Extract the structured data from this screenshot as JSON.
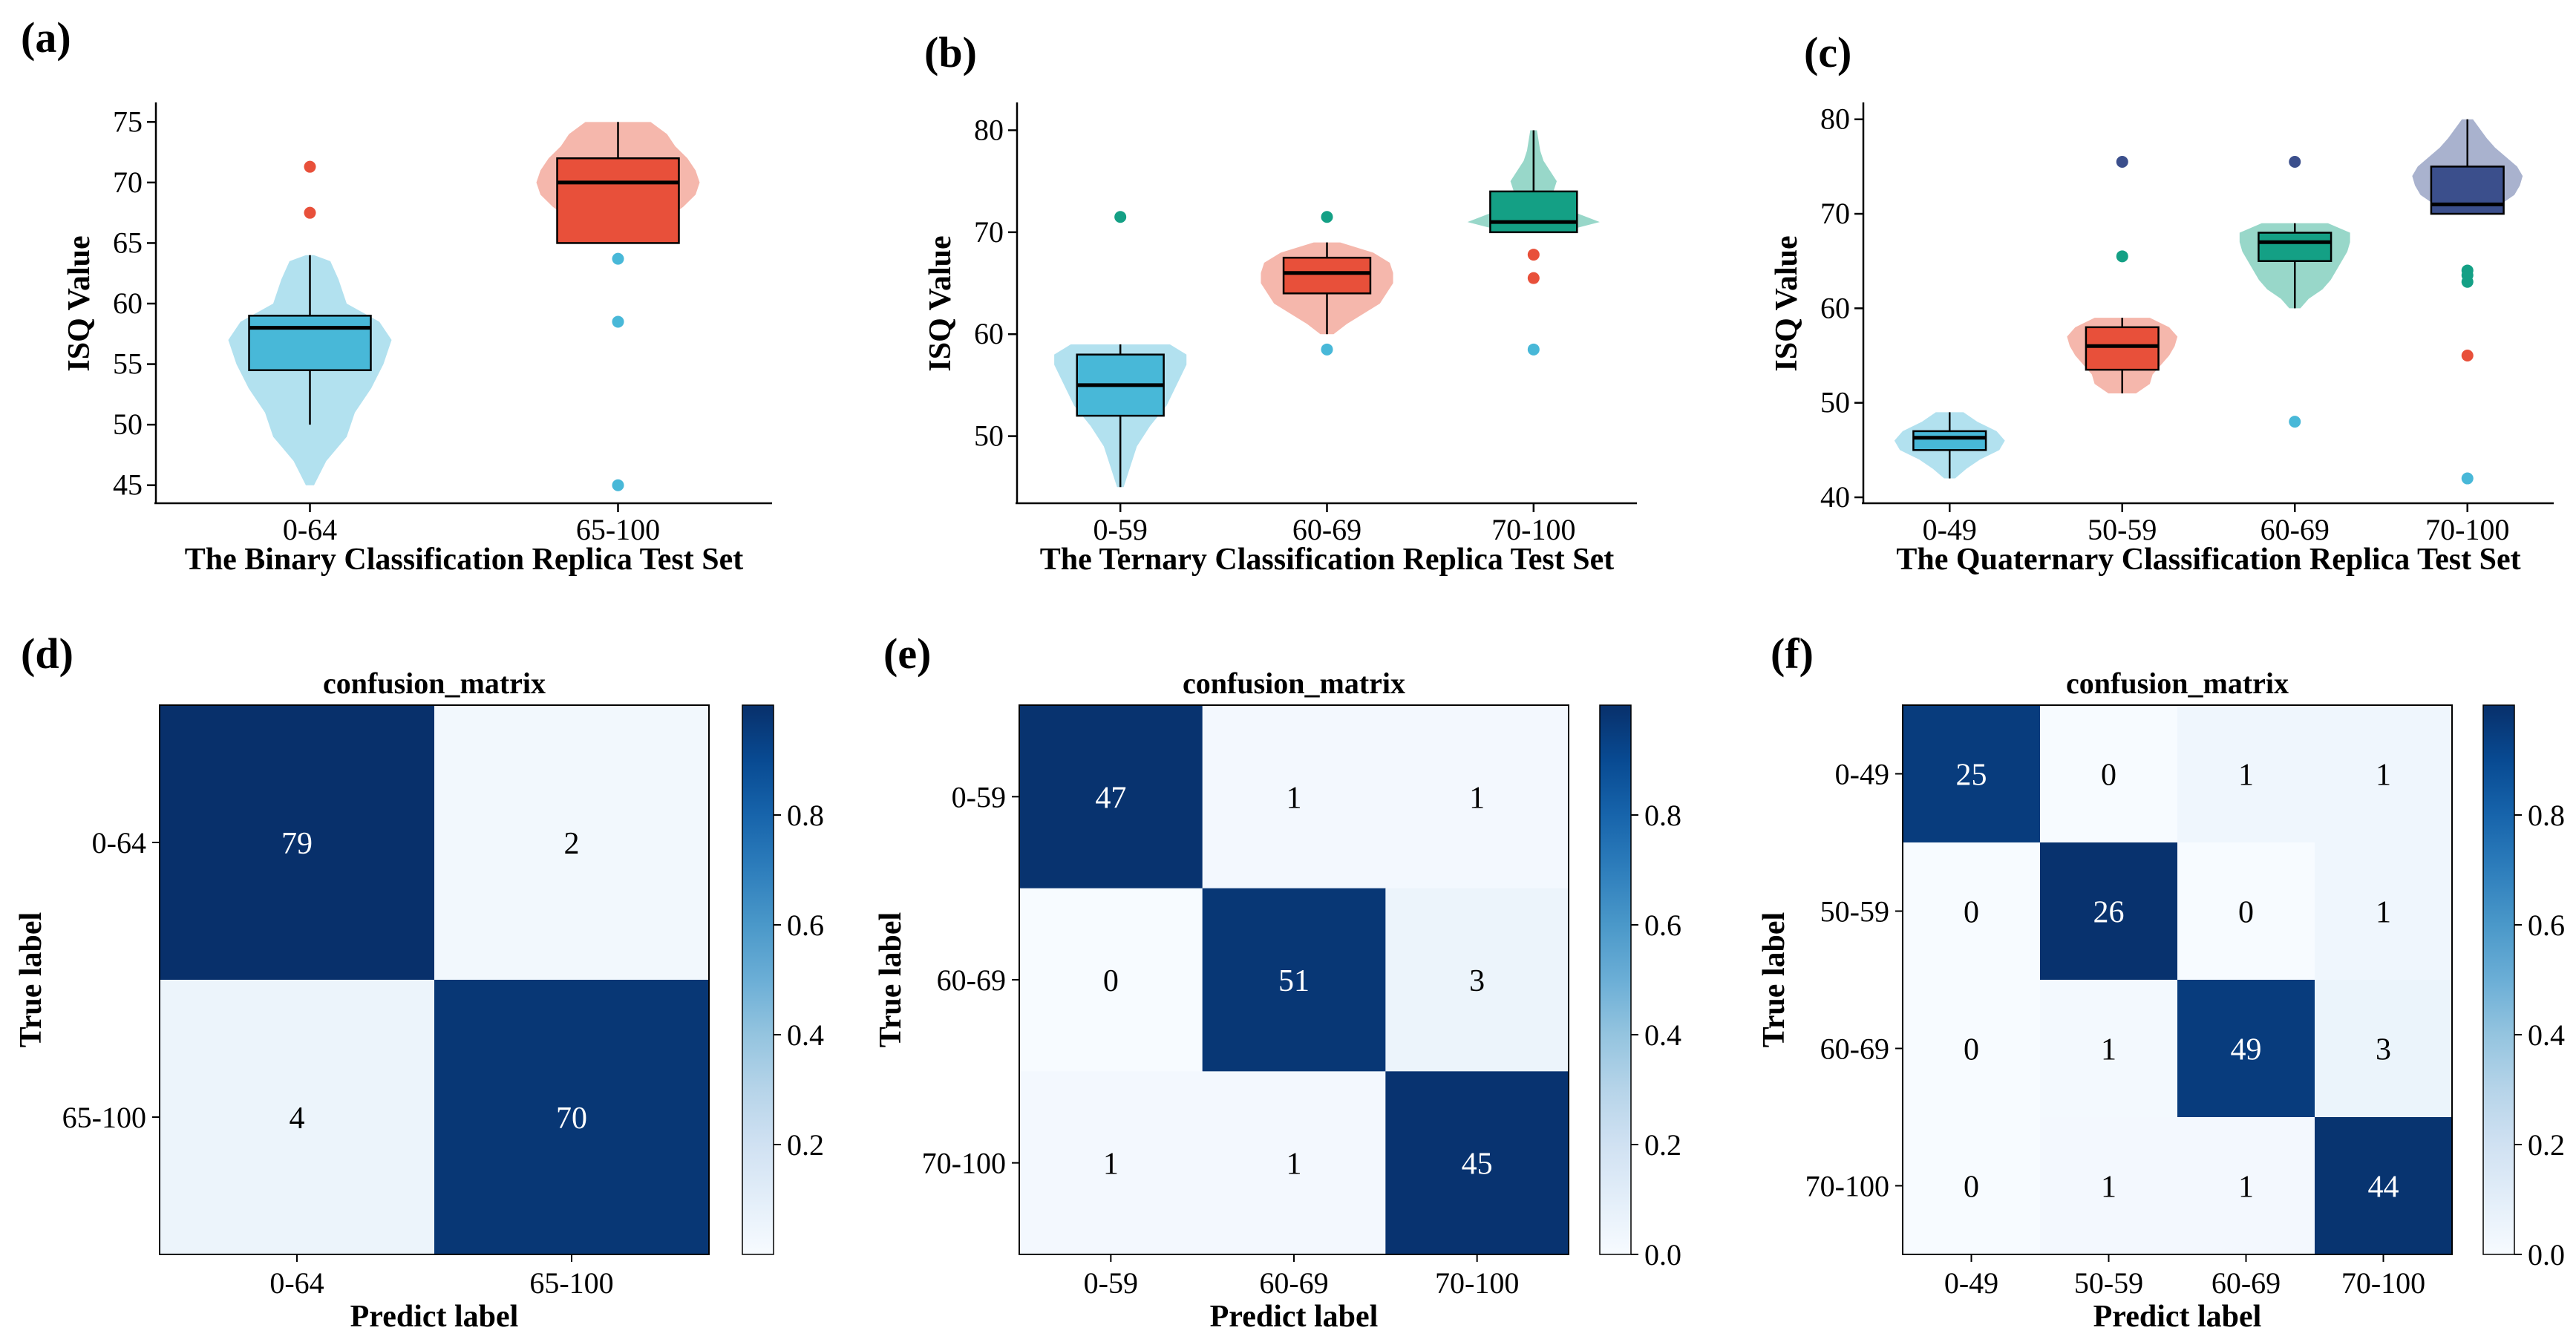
{
  "chart_data": [
    {
      "panel": "(a)",
      "type": "box_violin",
      "ylabel": "ISQ Value",
      "xlabel": "The Binary Classification Replica Test Set",
      "ylim": [
        44,
        76
      ],
      "yticks": [
        45,
        50,
        55,
        60,
        65,
        70,
        75
      ],
      "groups": [
        {
          "category": "0-64",
          "color": "#48b8d8",
          "violin_color": "#a4dcec",
          "box": {
            "q1": 54.5,
            "median": 58,
            "q3": 59,
            "whisker_low": 50,
            "whisker_high": 64
          },
          "violin": {
            "min": 45,
            "max": 64,
            "profile": [
              [
                45,
                0.05
              ],
              [
                47,
                0.2
              ],
              [
                49,
                0.45
              ],
              [
                51,
                0.55
              ],
              [
                53,
                0.75
              ],
              [
                55,
                0.9
              ],
              [
                57,
                1.0
              ],
              [
                58.5,
                0.85
              ],
              [
                60,
                0.45
              ],
              [
                62,
                0.35
              ],
              [
                63.5,
                0.25
              ],
              [
                64,
                0.05
              ]
            ]
          },
          "outliers": [
            {
              "y": 71.3,
              "color": "#e8503a"
            },
            {
              "y": 67.5,
              "color": "#e8503a"
            }
          ]
        },
        {
          "category": "65-100",
          "color": "#e8503a",
          "violin_color": "#f3aa9e",
          "box": {
            "q1": 65,
            "median": 70,
            "q3": 72,
            "whisker_low": 65,
            "whisker_high": 75
          },
          "violin": {
            "min": 65,
            "max": 75,
            "profile": [
              [
                65,
                0.1
              ],
              [
                66,
                0.4
              ],
              [
                67,
                0.6
              ],
              [
                68,
                0.8
              ],
              [
                69,
                0.95
              ],
              [
                70,
                1.0
              ],
              [
                71,
                0.95
              ],
              [
                72,
                0.85
              ],
              [
                73,
                0.7
              ],
              [
                74,
                0.6
              ],
              [
                75,
                0.4
              ]
            ]
          },
          "outliers": [
            {
              "y": 63.7,
              "color": "#48b8d8"
            },
            {
              "y": 58.5,
              "color": "#48b8d8"
            },
            {
              "y": 45,
              "color": "#48b8d8"
            }
          ]
        }
      ]
    },
    {
      "panel": "(b)",
      "type": "box_violin",
      "ylabel": "ISQ Value",
      "xlabel": "The Ternary Classification Replica Test Set",
      "ylim": [
        44,
        82
      ],
      "yticks": [
        50,
        60,
        70,
        80
      ],
      "groups": [
        {
          "category": "0-59",
          "color": "#48b8d8",
          "violin_color": "#a4dcec",
          "box": {
            "q1": 52,
            "median": 55,
            "q3": 58,
            "whisker_low": 45,
            "whisker_high": 59
          },
          "violin": {
            "min": 45,
            "max": 59,
            "profile": [
              [
                45,
                0.05
              ],
              [
                47,
                0.15
              ],
              [
                49,
                0.25
              ],
              [
                51,
                0.45
              ],
              [
                53,
                0.7
              ],
              [
                55,
                0.85
              ],
              [
                57,
                1.0
              ],
              [
                58,
                1.0
              ],
              [
                59,
                0.75
              ]
            ]
          },
          "outliers": [
            {
              "y": 71.5,
              "color": "#14a085"
            }
          ]
        },
        {
          "category": "60-69",
          "color": "#e8503a",
          "violin_color": "#f3aa9e",
          "box": {
            "q1": 64,
            "median": 66,
            "q3": 67.5,
            "whisker_low": 60,
            "whisker_high": 69
          },
          "violin": {
            "min": 60,
            "max": 69,
            "profile": [
              [
                60,
                0.1
              ],
              [
                61,
                0.3
              ],
              [
                62,
                0.55
              ],
              [
                63,
                0.8
              ],
              [
                64,
                0.9
              ],
              [
                65,
                1.0
              ],
              [
                66,
                1.0
              ],
              [
                67,
                0.95
              ],
              [
                68,
                0.7
              ],
              [
                69,
                0.2
              ]
            ]
          },
          "outliers": [
            {
              "y": 71.5,
              "color": "#14a085"
            },
            {
              "y": 58.5,
              "color": "#48b8d8"
            }
          ]
        },
        {
          "category": "70-100",
          "color": "#14a085",
          "violin_color": "#86d0bf",
          "box": {
            "q1": 70,
            "median": 71,
            "q3": 74,
            "whisker_low": 70,
            "whisker_high": 80
          },
          "violin": {
            "min": 70,
            "max": 80,
            "profile": [
              [
                70,
                0.4
              ],
              [
                71,
                1.0
              ],
              [
                72,
                0.6
              ],
              [
                73,
                0.4
              ],
              [
                74,
                0.3
              ],
              [
                75,
                0.35
              ],
              [
                76,
                0.25
              ],
              [
                77,
                0.15
              ],
              [
                78,
                0.1
              ],
              [
                80,
                0.05
              ]
            ]
          },
          "outliers": [
            {
              "y": 67.8,
              "color": "#e8503a"
            },
            {
              "y": 65.5,
              "color": "#e8503a"
            },
            {
              "y": 58.5,
              "color": "#48b8d8"
            }
          ]
        }
      ]
    },
    {
      "panel": "(c)",
      "type": "box_violin",
      "ylabel": "ISQ Value",
      "xlabel": "The Quaternary Classification Replica Test Set",
      "ylim": [
        40,
        81
      ],
      "yticks": [
        40,
        50,
        60,
        70,
        80
      ],
      "groups": [
        {
          "category": "0-49",
          "color": "#48b8d8",
          "violin_color": "#a4dcec",
          "box": {
            "q1": 45,
            "median": 46.3,
            "q3": 47,
            "whisker_low": 42,
            "whisker_high": 49
          },
          "violin": {
            "min": 42,
            "max": 49,
            "profile": [
              [
                42,
                0.1
              ],
              [
                43,
                0.3
              ],
              [
                44,
                0.55
              ],
              [
                45,
                0.9
              ],
              [
                46,
                1.0
              ],
              [
                47,
                0.85
              ],
              [
                48,
                0.5
              ],
              [
                49,
                0.25
              ]
            ]
          },
          "outliers": []
        },
        {
          "category": "50-59",
          "color": "#e8503a",
          "violin_color": "#f3aa9e",
          "box": {
            "q1": 53.5,
            "median": 56,
            "q3": 58,
            "whisker_low": 51,
            "whisker_high": 59
          },
          "violin": {
            "min": 51,
            "max": 59,
            "profile": [
              [
                51,
                0.25
              ],
              [
                52,
                0.5
              ],
              [
                53,
                0.55
              ],
              [
                54,
                0.7
              ],
              [
                55,
                0.85
              ],
              [
                56,
                0.95
              ],
              [
                57,
                1.0
              ],
              [
                58,
                0.85
              ],
              [
                59,
                0.5
              ]
            ]
          },
          "outliers": [
            {
              "y": 75.5,
              "color": "#3b4f8c"
            },
            {
              "y": 65.5,
              "color": "#14a085"
            }
          ]
        },
        {
          "category": "60-69",
          "color": "#14a085",
          "violin_color": "#86d0bf",
          "box": {
            "q1": 65,
            "median": 67,
            "q3": 68,
            "whisker_low": 60,
            "whisker_high": 69
          },
          "violin": {
            "min": 60,
            "max": 69,
            "profile": [
              [
                60,
                0.1
              ],
              [
                61,
                0.25
              ],
              [
                62,
                0.5
              ],
              [
                63,
                0.65
              ],
              [
                64,
                0.75
              ],
              [
                65,
                0.85
              ],
              [
                66,
                0.95
              ],
              [
                67,
                1.0
              ],
              [
                68,
                1.0
              ],
              [
                69,
                0.6
              ]
            ]
          },
          "outliers": [
            {
              "y": 75.5,
              "color": "#3b4f8c"
            },
            {
              "y": 48,
              "color": "#48b8d8"
            }
          ]
        },
        {
          "category": "70-100",
          "color": "#3b4f8c",
          "violin_color": "#9aa4c6",
          "box": {
            "q1": 70,
            "median": 71,
            "q3": 75,
            "whisker_low": 70,
            "whisker_high": 80
          },
          "violin": {
            "min": 70,
            "max": 80,
            "profile": [
              [
                70,
                0.3
              ],
              [
                71,
                0.6
              ],
              [
                72,
                0.85
              ],
              [
                73,
                0.95
              ],
              [
                74,
                1.0
              ],
              [
                75,
                0.9
              ],
              [
                76,
                0.7
              ],
              [
                77,
                0.5
              ],
              [
                78,
                0.35
              ],
              [
                80,
                0.1
              ]
            ]
          },
          "outliers": [
            {
              "y": 64,
              "color": "#14a085"
            },
            {
              "y": 63.5,
              "color": "#14a085"
            },
            {
              "y": 62.8,
              "color": "#14a085"
            },
            {
              "y": 55,
              "color": "#e8503a"
            },
            {
              "y": 42,
              "color": "#48b8d8"
            }
          ]
        }
      ]
    },
    {
      "panel": "(d)",
      "type": "heatmap",
      "title": "confusion_matrix",
      "xlabel": "Predict label",
      "ylabel": "True label",
      "labels": [
        "0-64",
        "65-100"
      ],
      "matrix": [
        [
          79,
          2
        ],
        [
          4,
          70
        ]
      ],
      "colorbar_ticks": [
        "0.2",
        "0.4",
        "0.6",
        "0.8"
      ],
      "colorbar_range": [
        0,
        1
      ]
    },
    {
      "panel": "(e)",
      "type": "heatmap",
      "title": "confusion_matrix",
      "xlabel": "Predict label",
      "ylabel": "True label",
      "labels": [
        "0-59",
        "60-69",
        "70-100"
      ],
      "matrix": [
        [
          47,
          1,
          1
        ],
        [
          0,
          51,
          3
        ],
        [
          1,
          1,
          45
        ]
      ],
      "colorbar_ticks": [
        "0.0",
        "0.2",
        "0.4",
        "0.6",
        "0.8"
      ],
      "colorbar_range": [
        0,
        1
      ]
    },
    {
      "panel": "(f)",
      "type": "heatmap",
      "title": "confusion_matrix",
      "xlabel": "Predict label",
      "ylabel": "True label",
      "labels": [
        "0-49",
        "50-59",
        "60-69",
        "70-100"
      ],
      "matrix": [
        [
          25,
          0,
          1,
          1
        ],
        [
          0,
          26,
          0,
          1
        ],
        [
          0,
          1,
          49,
          3
        ],
        [
          0,
          1,
          1,
          44
        ]
      ],
      "colorbar_ticks": [
        "0.0",
        "0.2",
        "0.4",
        "0.6",
        "0.8"
      ],
      "colorbar_range": [
        0,
        1
      ]
    }
  ]
}
